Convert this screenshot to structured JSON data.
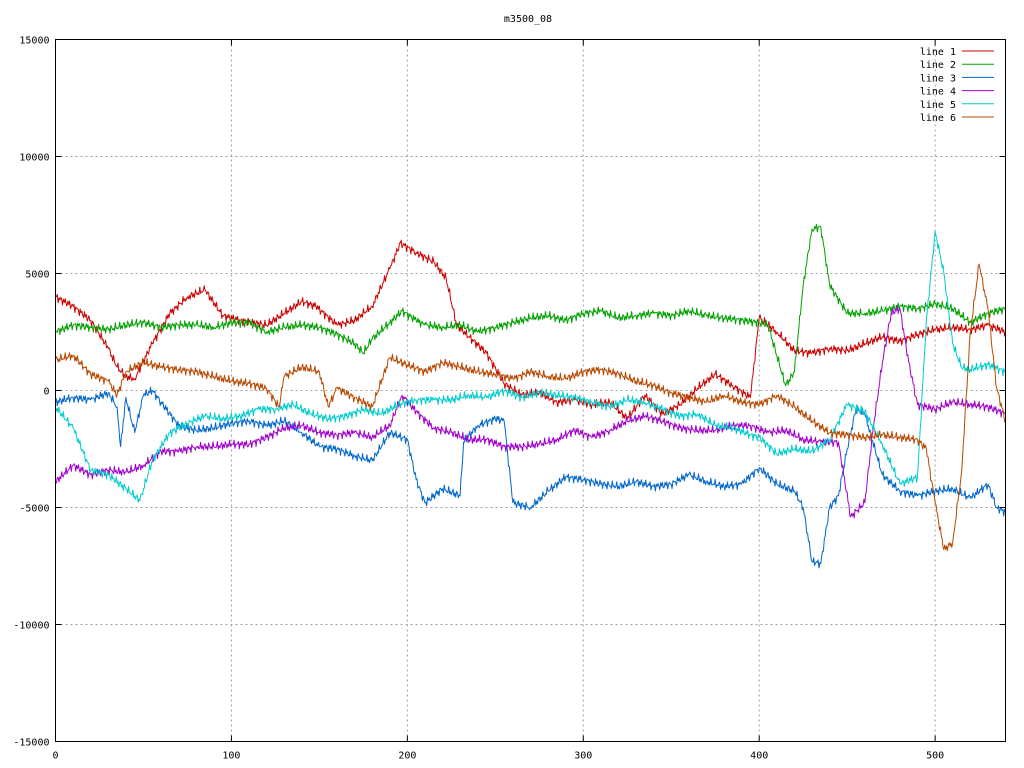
{
  "chart_data": {
    "type": "line",
    "title": "m3500_08",
    "xlim": [
      0,
      540
    ],
    "ylim": [
      -15000,
      15000
    ],
    "x_ticks": [
      0,
      100,
      200,
      300,
      400,
      500
    ],
    "y_ticks": [
      -15000,
      -10000,
      -5000,
      0,
      5000,
      10000,
      15000
    ],
    "x_tick_labels": [
      "0",
      "100",
      "200",
      "300",
      "400",
      "500"
    ],
    "y_tick_labels": [
      "-15000",
      "-10000",
      "-5000",
      "0",
      "5000",
      "10000",
      "15000"
    ],
    "grid": true,
    "legend_position": "top-right",
    "series": [
      {
        "name": "line 1",
        "color": "#cc0000",
        "x": [
          0,
          10,
          20,
          30,
          35,
          40,
          45,
          55,
          65,
          75,
          85,
          95,
          105,
          120,
          130,
          140,
          148,
          160,
          170,
          180,
          190,
          196,
          205,
          215,
          222,
          228,
          235,
          245,
          255,
          265,
          275,
          285,
          295,
          305,
          315,
          325,
          335,
          345,
          355,
          365,
          375,
          385,
          395,
          400,
          410,
          420,
          430,
          440,
          450,
          460,
          470,
          480,
          490,
          500,
          510,
          520,
          530,
          540
        ],
        "y": [
          4000,
          3600,
          3000,
          1800,
          1000,
          600,
          500,
          2000,
          3300,
          4000,
          4300,
          3200,
          3000,
          2800,
          3300,
          3800,
          3600,
          2800,
          3000,
          3600,
          5200,
          6300,
          5900,
          5500,
          4800,
          2800,
          2300,
          1600,
          300,
          -200,
          -100,
          -500,
          -400,
          -600,
          -500,
          -1200,
          -200,
          -1000,
          -600,
          100,
          700,
          200,
          -300,
          3100,
          2500,
          1700,
          1600,
          1800,
          1700,
          2000,
          2300,
          2100,
          2400,
          2600,
          2700,
          2600,
          2800,
          2500
        ]
      },
      {
        "name": "line 2",
        "color": "#00a000",
        "x": [
          0,
          10,
          20,
          30,
          40,
          50,
          60,
          70,
          80,
          90,
          100,
          110,
          120,
          130,
          140,
          150,
          160,
          170,
          175,
          180,
          190,
          197,
          205,
          210,
          220,
          230,
          240,
          250,
          260,
          270,
          280,
          290,
          300,
          310,
          320,
          330,
          340,
          350,
          360,
          370,
          380,
          390,
          400,
          405,
          410,
          415,
          420,
          425,
          430,
          435,
          440,
          450,
          460,
          470,
          480,
          490,
          500,
          510,
          520,
          530,
          540
        ],
        "y": [
          2500,
          2800,
          2700,
          2600,
          2800,
          2900,
          2700,
          2800,
          2800,
          2700,
          2900,
          2900,
          2500,
          2700,
          2800,
          2700,
          2400,
          2000,
          1600,
          2200,
          2900,
          3400,
          3000,
          2800,
          2700,
          2800,
          2500,
          2700,
          2900,
          3100,
          3200,
          3000,
          3300,
          3400,
          3100,
          3200,
          3300,
          3200,
          3400,
          3200,
          3100,
          3000,
          2900,
          2800,
          1500,
          200,
          800,
          4500,
          6900,
          7000,
          4500,
          3300,
          3300,
          3400,
          3600,
          3500,
          3700,
          3500,
          2900,
          3300,
          3500
        ]
      },
      {
        "name": "line 3",
        "color": "#0066cc",
        "x": [
          0,
          10,
          20,
          30,
          35,
          37,
          40,
          45,
          50,
          55,
          60,
          70,
          80,
          90,
          100,
          110,
          120,
          130,
          140,
          150,
          160,
          170,
          180,
          190,
          200,
          205,
          210,
          220,
          230,
          232,
          240,
          250,
          255,
          260,
          270,
          280,
          290,
          300,
          310,
          320,
          330,
          340,
          350,
          360,
          370,
          380,
          390,
          400,
          410,
          420,
          425,
          430,
          435,
          440,
          445,
          450,
          455,
          460,
          470,
          480,
          490,
          500,
          510,
          520,
          530,
          535,
          540
        ],
        "y": [
          -500,
          -300,
          -400,
          -100,
          -700,
          -2400,
          -300,
          -1800,
          -200,
          0,
          -500,
          -1500,
          -1700,
          -1600,
          -1400,
          -1300,
          -1500,
          -1300,
          -1800,
          -2400,
          -2500,
          -2800,
          -3000,
          -1800,
          -2100,
          -3800,
          -4800,
          -4200,
          -4500,
          -2200,
          -1500,
          -1200,
          -1300,
          -4800,
          -5000,
          -4300,
          -3700,
          -3800,
          -4000,
          -4100,
          -3900,
          -4100,
          -4000,
          -3600,
          -3900,
          -4100,
          -4000,
          -3300,
          -4000,
          -4300,
          -5000,
          -7300,
          -7400,
          -5000,
          -4500,
          -2500,
          -800,
          -1000,
          -3600,
          -4300,
          -4500,
          -4300,
          -4200,
          -4600,
          -4000,
          -5000,
          -5200
        ]
      },
      {
        "name": "line 4",
        "color": "#a000cc",
        "x": [
          0,
          10,
          20,
          30,
          40,
          50,
          60,
          70,
          80,
          90,
          100,
          110,
          120,
          130,
          140,
          150,
          160,
          170,
          180,
          190,
          197,
          205,
          215,
          225,
          235,
          245,
          255,
          265,
          275,
          285,
          295,
          305,
          315,
          325,
          335,
          345,
          355,
          365,
          375,
          385,
          395,
          405,
          415,
          425,
          435,
          445,
          452,
          460,
          465,
          470,
          475,
          480,
          485,
          490,
          500,
          510,
          520,
          530,
          540
        ],
        "y": [
          -3900,
          -3200,
          -3600,
          -3400,
          -3500,
          -3200,
          -2600,
          -2600,
          -2400,
          -2400,
          -2300,
          -2300,
          -2000,
          -1600,
          -1500,
          -1800,
          -1900,
          -1800,
          -2000,
          -1500,
          -200,
          -900,
          -1600,
          -1800,
          -2100,
          -2100,
          -2400,
          -2400,
          -2300,
          -2100,
          -1700,
          -2000,
          -1700,
          -1300,
          -1100,
          -1300,
          -1600,
          -1700,
          -1700,
          -1500,
          -1500,
          -1800,
          -1700,
          -2100,
          -2200,
          -2200,
          -5400,
          -4800,
          -1500,
          1200,
          3300,
          3500,
          1200,
          -600,
          -800,
          -500,
          -600,
          -700,
          -1000
        ]
      },
      {
        "name": "line 5",
        "color": "#00cccc",
        "x": [
          0,
          10,
          20,
          30,
          40,
          48,
          55,
          65,
          75,
          85,
          95,
          105,
          115,
          125,
          135,
          145,
          155,
          165,
          175,
          185,
          195,
          205,
          215,
          225,
          235,
          245,
          255,
          265,
          275,
          285,
          295,
          305,
          315,
          325,
          335,
          345,
          355,
          365,
          375,
          385,
          395,
          400,
          410,
          420,
          430,
          440,
          450,
          460,
          470,
          480,
          490,
          495,
          500,
          505,
          510,
          515,
          520,
          530,
          540
        ],
        "y": [
          -700,
          -1600,
          -3400,
          -3600,
          -4200,
          -4700,
          -3000,
          -1800,
          -1400,
          -1100,
          -1200,
          -1100,
          -800,
          -800,
          -600,
          -1000,
          -1200,
          -1100,
          -800,
          -1000,
          -600,
          -400,
          -400,
          -400,
          -200,
          -300,
          0,
          -300,
          -100,
          -200,
          -300,
          -500,
          -700,
          -400,
          -500,
          -800,
          -1100,
          -1000,
          -1500,
          -1600,
          -1900,
          -2000,
          -2700,
          -2500,
          -2600,
          -2100,
          -600,
          -900,
          -2300,
          -4000,
          -3700,
          3000,
          6800,
          5000,
          2000,
          1000,
          900,
          1100,
          800
        ]
      },
      {
        "name": "line 6",
        "color": "#b84800",
        "x": [
          0,
          10,
          20,
          30,
          35,
          40,
          50,
          60,
          70,
          80,
          90,
          100,
          110,
          120,
          127,
          130,
          140,
          150,
          155,
          160,
          170,
          180,
          190,
          200,
          210,
          220,
          230,
          240,
          250,
          260,
          270,
          280,
          290,
          300,
          310,
          320,
          330,
          340,
          350,
          360,
          370,
          380,
          390,
          400,
          410,
          420,
          430,
          440,
          450,
          460,
          470,
          480,
          490,
          495,
          500,
          505,
          510,
          515,
          520,
          525,
          530,
          535,
          540
        ],
        "y": [
          1300,
          1500,
          700,
          400,
          -200,
          800,
          1200,
          1000,
          900,
          800,
          600,
          400,
          300,
          100,
          -700,
          600,
          1000,
          800,
          -700,
          100,
          -300,
          -700,
          1400,
          1100,
          800,
          1200,
          1000,
          800,
          700,
          500,
          800,
          600,
          500,
          800,
          900,
          700,
          400,
          200,
          -100,
          -300,
          -500,
          -200,
          -500,
          -600,
          -200,
          -700,
          -1300,
          -1800,
          -1900,
          -2000,
          -1900,
          -2000,
          -2100,
          -2500,
          -4800,
          -6800,
          -6500,
          -3500,
          2500,
          5400,
          3500,
          100,
          -1300
        ]
      }
    ]
  }
}
